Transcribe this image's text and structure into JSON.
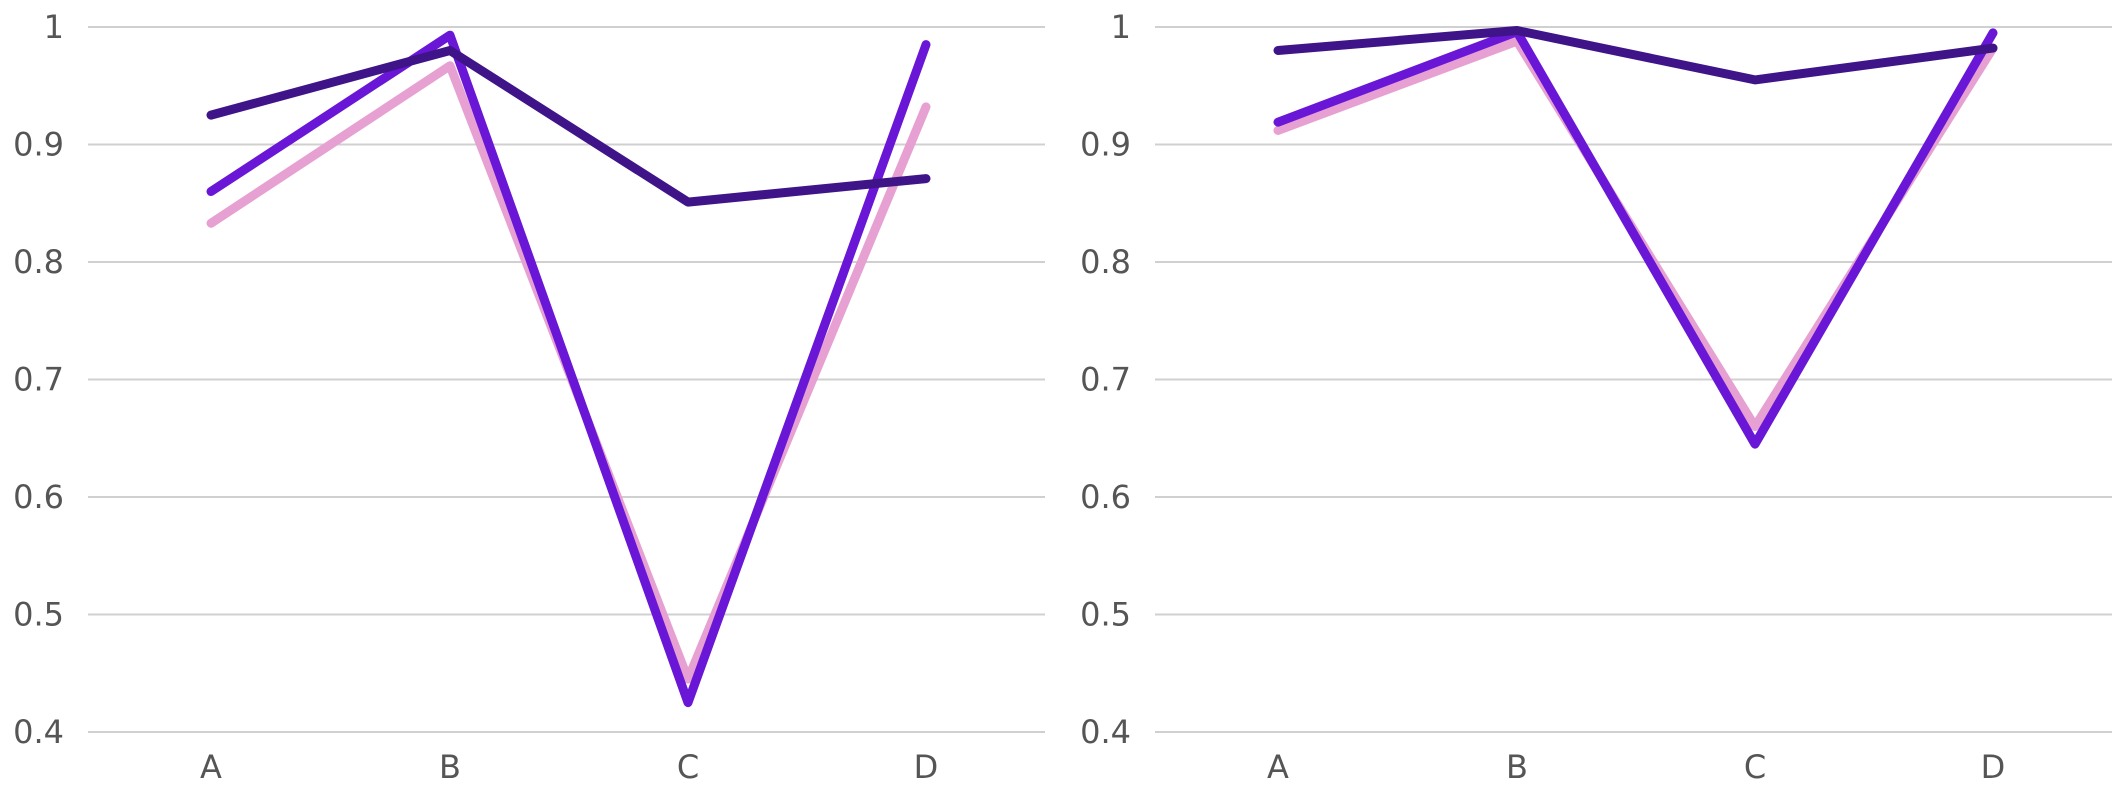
{
  "chart_data": [
    {
      "type": "line",
      "categories": [
        "A",
        "B",
        "C",
        "D"
      ],
      "ylim": [
        0.4,
        1
      ],
      "yticks": [
        0.4,
        0.5,
        0.6,
        0.7,
        0.8,
        0.9,
        1
      ],
      "ytick_labels": [
        "0.4",
        "0.5",
        "0.6",
        "0.7",
        "0.8",
        "0.9",
        "1"
      ],
      "grid": true,
      "series": [
        {
          "color": "#e6a0d2",
          "values": [
            0.833,
            0.967,
            0.445,
            0.932
          ]
        },
        {
          "color": "#6a16d6",
          "values": [
            0.86,
            0.993,
            0.425,
            0.985
          ]
        },
        {
          "color": "#3f1488",
          "values": [
            0.925,
            0.98,
            0.851,
            0.871
          ]
        }
      ]
    },
    {
      "type": "line",
      "categories": [
        "A",
        "B",
        "C",
        "D"
      ],
      "ylim": [
        0.4,
        1
      ],
      "yticks": [
        0.4,
        0.5,
        0.6,
        0.7,
        0.8,
        0.9,
        1
      ],
      "ytick_labels": [
        "0.4",
        "0.5",
        "0.6",
        "0.7",
        "0.8",
        "0.9",
        "1"
      ],
      "grid": true,
      "series": [
        {
          "color": "#e6a0d2",
          "values": [
            0.912,
            0.988,
            0.66,
            0.982
          ]
        },
        {
          "color": "#6a16d6",
          "values": [
            0.919,
            0.996,
            0.645,
            0.995
          ]
        },
        {
          "color": "#3f1488",
          "values": [
            0.98,
            0.997,
            0.955,
            0.982
          ]
        }
      ]
    }
  ]
}
